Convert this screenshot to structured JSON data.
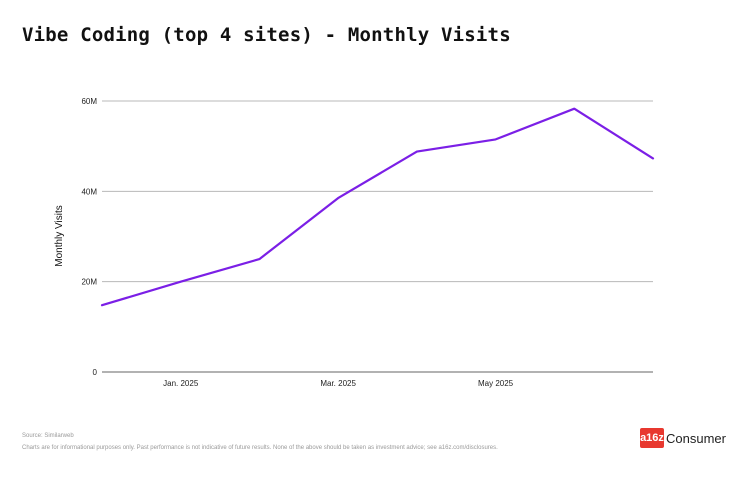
{
  "title": "Vibe Coding (top 4 sites) - Monthly Visits",
  "chart_data": {
    "type": "line",
    "title": "Vibe Coding (top 4 sites) - Monthly Visits",
    "ylabel": "Monthly Visits",
    "xlabel": "",
    "ylim": [
      0,
      60000000
    ],
    "y_ticks": [
      {
        "value": 0,
        "label": "0"
      },
      {
        "value": 20000000,
        "label": "20M"
      },
      {
        "value": 40000000,
        "label": "40M"
      },
      {
        "value": 60000000,
        "label": "60M"
      }
    ],
    "x": [
      "2024-12",
      "2025-01",
      "2025-02",
      "2025-03",
      "2025-04",
      "2025-05",
      "2025-06",
      "2025-07"
    ],
    "x_ticks": [
      {
        "index": 1,
        "label": "Jan. 2025"
      },
      {
        "index": 3,
        "label": "Mar. 2025"
      },
      {
        "index": 5,
        "label": "May 2025"
      }
    ],
    "series": [
      {
        "values": [
          14800000,
          20000000,
          25000000,
          38500000,
          48800000,
          51500000,
          58300000,
          47300000
        ]
      }
    ],
    "line_color": "#7b1fe6",
    "grid": true
  },
  "footer": {
    "source": "Source: Similarweb",
    "disclaimer": "Charts are for informational purposes only. Past performance is not indicative of future results. None of the above should be taken as investment advice; see a16z.com/disclosures."
  },
  "logo": {
    "mark": "a16z",
    "text": "Consumer"
  }
}
